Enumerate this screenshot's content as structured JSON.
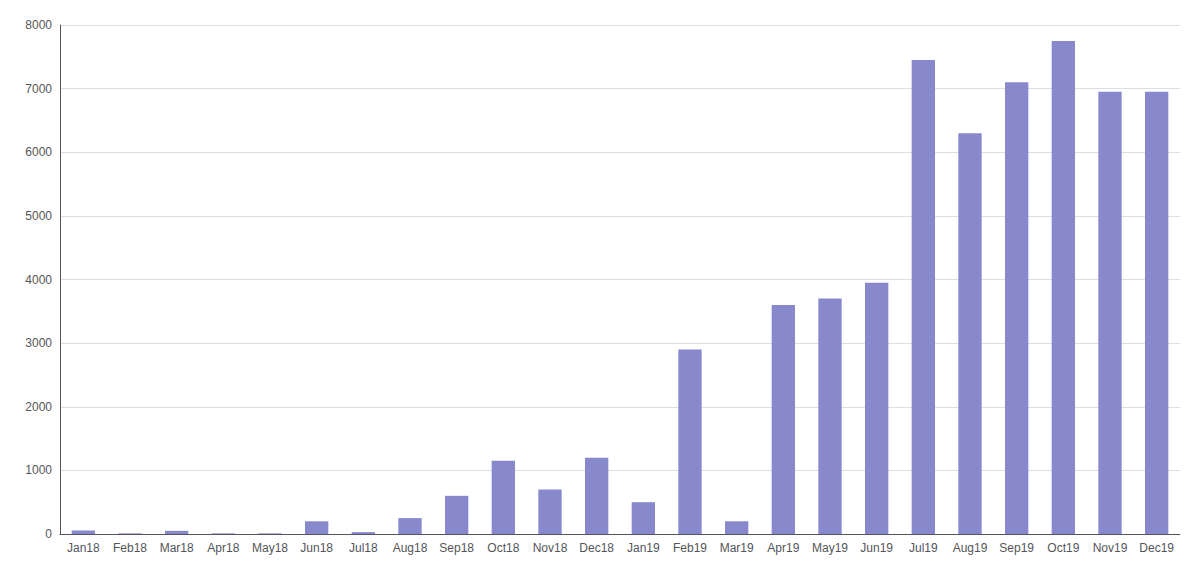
{
  "chart_data": {
    "type": "bar",
    "categories": [
      "Jan18",
      "Feb18",
      "Mar18",
      "Apr18",
      "May18",
      "Jun18",
      "Jul18",
      "Aug18",
      "Sep18",
      "Oct18",
      "Nov18",
      "Dec18",
      "Jan19",
      "Feb19",
      "Mar19",
      "Apr19",
      "May19",
      "Jun19",
      "Jul19",
      "Aug19",
      "Sep19",
      "Oct19",
      "Nov19",
      "Dec19"
    ],
    "values": [
      55,
      10,
      50,
      10,
      10,
      200,
      30,
      250,
      600,
      1150,
      700,
      1200,
      500,
      2900,
      200,
      3600,
      3700,
      3950,
      7450,
      6300,
      7100,
      7750,
      6950,
      6950
    ],
    "color": "#8888cc",
    "ylim": [
      0,
      8000
    ],
    "yticks": [
      0,
      1000,
      2000,
      3000,
      4000,
      5000,
      6000,
      7000,
      8000
    ],
    "grid": true
  }
}
